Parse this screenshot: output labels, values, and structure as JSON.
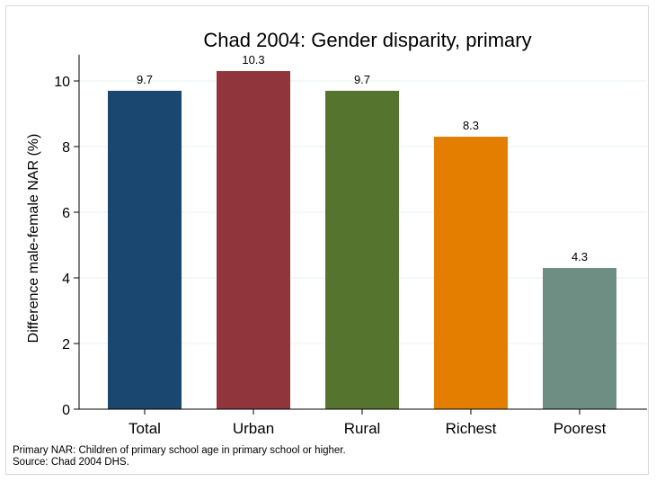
{
  "chart_data": {
    "type": "bar",
    "title": "Chad 2004: Gender disparity, primary",
    "ylabel": "Difference male-female NAR (%)",
    "xlabel": "",
    "categories": [
      "Total",
      "Urban",
      "Rural",
      "Richest",
      "Poorest"
    ],
    "values": [
      9.7,
      10.3,
      9.7,
      8.3,
      4.3
    ],
    "value_labels": [
      "9.7",
      "10.3",
      "9.7",
      "8.3",
      "4.3"
    ],
    "colors": [
      "#1a476f",
      "#90353b",
      "#55752f",
      "#e37e00",
      "#6e8e84"
    ],
    "yticks": [
      0,
      2,
      4,
      6,
      8,
      10
    ],
    "ylim": [
      0,
      10.8
    ],
    "grid": true,
    "legend": "none"
  },
  "notes": [
    "Primary NAR: Children of primary school age in primary school or higher.",
    "Source: Chad 2004 DHS."
  ]
}
